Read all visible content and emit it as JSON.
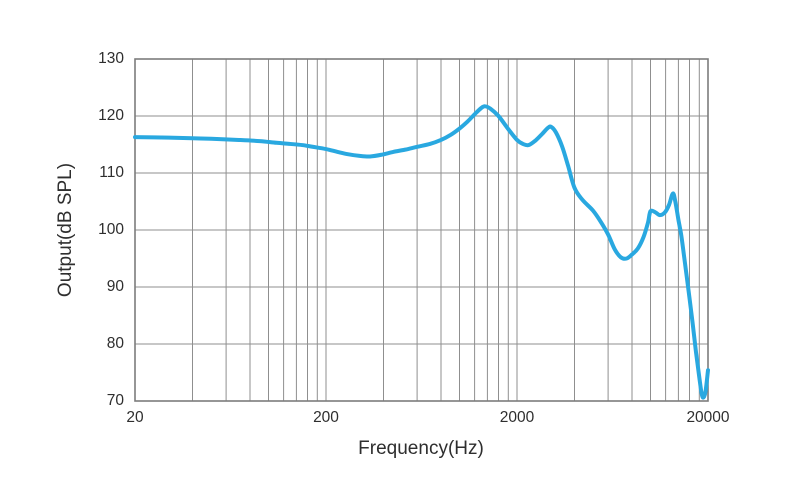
{
  "axes": {
    "x_title": "Frequency(Hz)",
    "y_title": "Output(dB SPL)"
  },
  "colors": {
    "curve": "#29a8e0",
    "grid": "#8f8f8f",
    "border": "#7c7c7c",
    "text": "#2e2e2e",
    "background": "#ffffff"
  },
  "chart_data": {
    "type": "line",
    "title": "",
    "xlabel": "Frequency(Hz)",
    "ylabel": "Output(dB SPL)",
    "x_scale": "log",
    "xlim": [
      20,
      20000
    ],
    "ylim": [
      70,
      130
    ],
    "grid": true,
    "legend": false,
    "y_ticks": [
      {
        "value": 130,
        "label": "130"
      },
      {
        "value": 120,
        "label": "120"
      },
      {
        "value": 110,
        "label": "110"
      },
      {
        "value": 100,
        "label": "100"
      },
      {
        "value": 90,
        "label": "90"
      },
      {
        "value": 80,
        "label": "80"
      },
      {
        "value": 70,
        "label": "70"
      }
    ],
    "x_ticks": [
      {
        "value": 20,
        "label": "20"
      },
      {
        "value": 200,
        "label": "200"
      },
      {
        "value": 2000,
        "label": "2000"
      },
      {
        "value": 20000,
        "label": "20000"
      }
    ],
    "x_gridlines": [
      40,
      60,
      80,
      100,
      120,
      140,
      160,
      180,
      200,
      400,
      600,
      800,
      1000,
      1200,
      1400,
      1600,
      1800,
      2000,
      4000,
      6000,
      8000,
      10000,
      12000,
      14000,
      16000,
      18000
    ],
    "y_gridlines": [
      80,
      90,
      100,
      110,
      120
    ],
    "series": [
      {
        "name": "Output (dB SPL)",
        "color": "#29a8e0",
        "stroke_width": 4,
        "points": [
          [
            20,
            116.3
          ],
          [
            30,
            116.2
          ],
          [
            40,
            116.1
          ],
          [
            50,
            116.0
          ],
          [
            70,
            115.8
          ],
          [
            90,
            115.6
          ],
          [
            110,
            115.3
          ],
          [
            130,
            115.1
          ],
          [
            150,
            114.9
          ],
          [
            170,
            114.6
          ],
          [
            200,
            114.2
          ],
          [
            230,
            113.7
          ],
          [
            260,
            113.3
          ],
          [
            300,
            113.0
          ],
          [
            340,
            112.9
          ],
          [
            390,
            113.2
          ],
          [
            450,
            113.7
          ],
          [
            520,
            114.1
          ],
          [
            600,
            114.6
          ],
          [
            700,
            115.1
          ],
          [
            800,
            115.8
          ],
          [
            900,
            116.7
          ],
          [
            1000,
            117.8
          ],
          [
            1100,
            119.0
          ],
          [
            1200,
            120.3
          ],
          [
            1300,
            121.4
          ],
          [
            1360,
            121.7
          ],
          [
            1450,
            121.3
          ],
          [
            1600,
            120.0
          ],
          [
            1800,
            117.7
          ],
          [
            2000,
            115.8
          ],
          [
            2150,
            115.1
          ],
          [
            2300,
            114.9
          ],
          [
            2500,
            115.7
          ],
          [
            2700,
            116.8
          ],
          [
            2900,
            117.9
          ],
          [
            3020,
            118.1
          ],
          [
            3200,
            117.1
          ],
          [
            3450,
            114.6
          ],
          [
            3700,
            111.3
          ],
          [
            4000,
            107.4
          ],
          [
            4400,
            105.3
          ],
          [
            5000,
            103.4
          ],
          [
            5500,
            101.4
          ],
          [
            6000,
            99.2
          ],
          [
            6500,
            96.6
          ],
          [
            7000,
            95.2
          ],
          [
            7500,
            95.0
          ],
          [
            8000,
            95.7
          ],
          [
            8600,
            96.8
          ],
          [
            9200,
            98.8
          ],
          [
            9700,
            101.3
          ],
          [
            10000,
            103.3
          ],
          [
            10600,
            103.1
          ],
          [
            11200,
            102.6
          ],
          [
            11900,
            103.1
          ],
          [
            12500,
            104.4
          ],
          [
            13100,
            106.4
          ],
          [
            13500,
            104.9
          ],
          [
            14000,
            101.8
          ],
          [
            14500,
            99.0
          ],
          [
            15000,
            95.3
          ],
          [
            15800,
            89.5
          ],
          [
            16600,
            83.8
          ],
          [
            17300,
            78.6
          ],
          [
            18000,
            74.2
          ],
          [
            18500,
            71.4
          ],
          [
            18900,
            70.6
          ],
          [
            19400,
            71.6
          ],
          [
            20000,
            75.4
          ]
        ]
      }
    ]
  }
}
